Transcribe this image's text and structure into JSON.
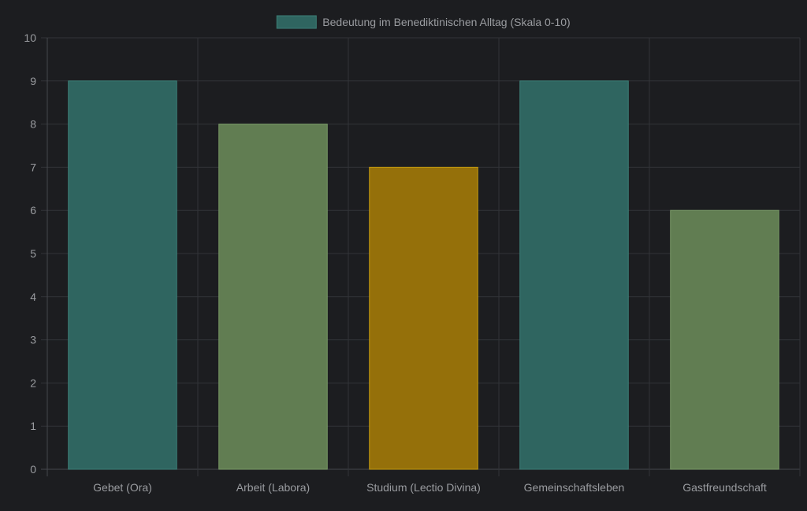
{
  "chart_data": {
    "type": "bar",
    "categories": [
      "Gebet (Ora)",
      "Arbeit (Labora)",
      "Studium (Lectio Divina)",
      "Gemeinschaftsleben",
      "Gastfreundschaft"
    ],
    "series": [
      {
        "name": "Bedeutung im Benediktinischen Alltag (Skala 0-10)",
        "values": [
          9,
          8,
          7,
          9,
          6
        ]
      }
    ],
    "bar_colors": [
      "#2f6560",
      "#617d52",
      "#95700a",
      "#2f6560",
      "#617d52"
    ],
    "bar_border_colors": [
      "#3d8078",
      "#7a9a68",
      "#c39a10",
      "#3d8078",
      "#7a9a68"
    ],
    "legend_swatch_color": "#2f6560",
    "ylim": [
      0,
      10
    ],
    "yticks": [
      0,
      1,
      2,
      3,
      4,
      5,
      6,
      7,
      8,
      9,
      10
    ],
    "grid": true,
    "legend_position": "top-center",
    "title": "",
    "xlabel": "",
    "ylabel": ""
  }
}
